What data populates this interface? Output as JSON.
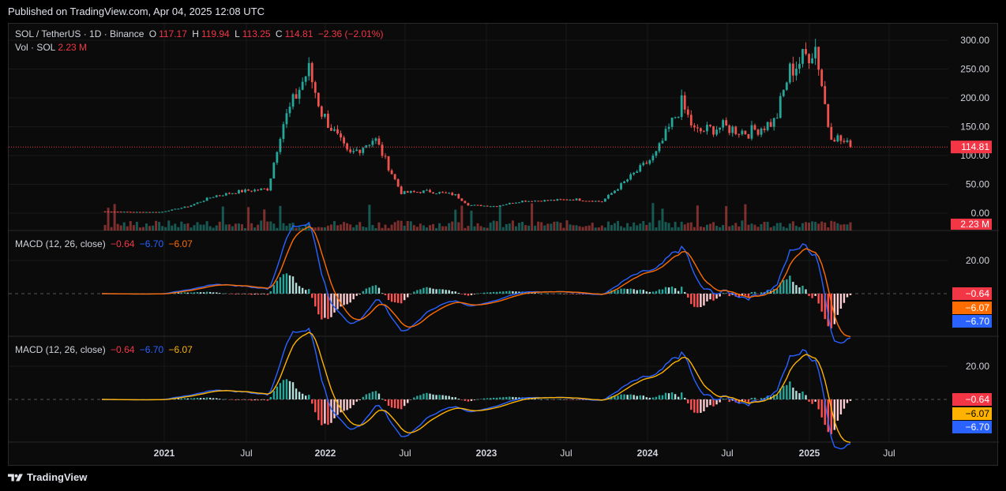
{
  "published": "Published on TradingView.com, Apr 04, 2025 12:08 UTC",
  "brand": "TradingView",
  "colors": {
    "up": "#26a69a",
    "down": "#ef5350",
    "macd_blue": "#2962ff",
    "signal_orange": "#ff6d00",
    "signal_yellow": "#ffb300",
    "price_label": "#f23645"
  },
  "main_legend": {
    "symbol": "SOL / TetherUS · 1D · Binance",
    "o_label": "O",
    "o": "117.17",
    "h_label": "H",
    "h": "119.94",
    "l_label": "L",
    "l": "113.25",
    "c_label": "C",
    "c": "114.81",
    "change": "−2.36 (−2.01%)",
    "vol_label": "Vol · SOL",
    "vol": "2.23 M"
  },
  "price_axis": {
    "ticks": [
      "300.00",
      "250.00",
      "200.00",
      "150.00",
      "100.00",
      "50.00",
      "0.00"
    ],
    "last_price": "114.81",
    "last_volume": "2.23 M"
  },
  "macd1": {
    "title": "MACD (12, 26, close)",
    "hist": "−0.64",
    "macd": "−6.70",
    "signal": "−6.07",
    "tick": "20.00",
    "labels": [
      "−0.64",
      "−6.07",
      "−6.70"
    ]
  },
  "macd2": {
    "title": "MACD (12, 26, close)",
    "hist": "−0.64",
    "macd": "−6.70",
    "signal": "−6.07",
    "tick": "20.00",
    "labels": [
      "−0.64",
      "−6.07",
      "−6.70"
    ]
  },
  "time_axis": [
    "2021",
    "Jul",
    "2022",
    "Jul",
    "2023",
    "Jul",
    "2024",
    "Jul",
    "2025",
    "Jul"
  ],
  "chart_data": {
    "type": "line",
    "title": "SOL / TetherUS · 1D · Binance",
    "ylim": [
      0,
      300
    ],
    "x": [
      "2020-08",
      "2020-10",
      "2020-12",
      "2021-02",
      "2021-04",
      "2021-06",
      "2021-08",
      "2021-09",
      "2021-11",
      "2021-12",
      "2022-02",
      "2022-04",
      "2022-06",
      "2022-08",
      "2022-10",
      "2022-11",
      "2023-01",
      "2023-03",
      "2023-05",
      "2023-07",
      "2023-09",
      "2023-11",
      "2024-01",
      "2024-03",
      "2024-04",
      "2024-06",
      "2024-08",
      "2024-10",
      "2024-11",
      "2025-01",
      "2025-02",
      "2025-04"
    ],
    "close": [
      3,
      2,
      2,
      12,
      30,
      38,
      42,
      150,
      250,
      175,
      100,
      130,
      35,
      38,
      32,
      14,
      12,
      21,
      22,
      24,
      20,
      60,
      100,
      190,
      140,
      150,
      140,
      160,
      245,
      290,
      140,
      114.81
    ],
    "macd_series": [
      {
        "name": "MACD",
        "hist": -0.64,
        "macd": -6.7,
        "signal": -6.07
      }
    ]
  }
}
